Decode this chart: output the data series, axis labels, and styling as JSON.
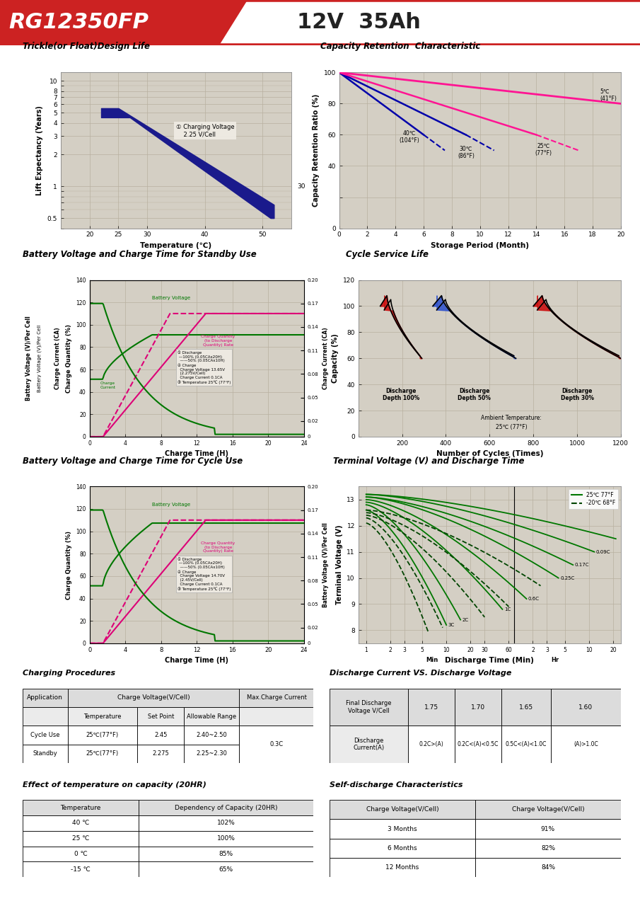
{
  "header": {
    "model": "RG12350FP",
    "spec": "12V  35Ah",
    "header_bg": "#cc2222",
    "header_text_color": "white"
  },
  "section_titles": {
    "trickle": "Trickle(or Float)Design Life",
    "capacity_ret": "Capacity Retention  Characteristic",
    "bv_standby": "Battery Voltage and Charge Time for Standby Use",
    "cycle_life": "Cycle Service Life",
    "bv_cycle": "Battery Voltage and Charge Time for Cycle Use",
    "terminal_v": "Terminal Voltage (V) and Discharge Time",
    "charging": "Charging Procedures",
    "discharge_cv": "Discharge Current VS. Discharge Voltage",
    "temp_cap": "Effect of temperature on capacity (20HR)",
    "self_dis": "Self-discharge Characteristics"
  },
  "plot_bg": "#d4cfc4",
  "grid_color": "#b8b0a0",
  "red_accent": "#cc2222",
  "blue_dark": "#1a1a8c",
  "pink_solid": "#ff1493",
  "pink_dashed": "#ff69b4",
  "blue_line": "#0000aa",
  "green_line": "#007700",
  "dark_green_line": "#004400",
  "pink_charge": "#dd0077"
}
